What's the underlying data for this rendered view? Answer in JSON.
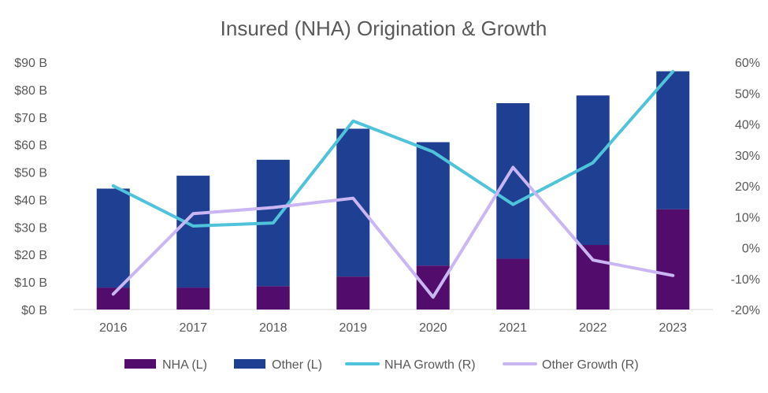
{
  "chart_data": {
    "type": "bar",
    "stacked": true,
    "title": "Insured (NHA) Origination & Growth",
    "categories": [
      "2016",
      "2017",
      "2018",
      "2019",
      "2020",
      "2021",
      "2022",
      "2023"
    ],
    "series": [
      {
        "name": "NHA (L)",
        "type": "bar",
        "axis": "left",
        "color": "#520D6C",
        "values": [
          8,
          8,
          8.5,
          12,
          16,
          18.5,
          23.5,
          36.5
        ]
      },
      {
        "name": "Other (L)",
        "type": "bar",
        "axis": "left",
        "color": "#1F3F93",
        "values": [
          36,
          40.7,
          46,
          53.8,
          44.9,
          56.6,
          54.4,
          50.2
        ]
      },
      {
        "name": "NHA Growth (R)",
        "type": "line",
        "axis": "right",
        "color": "#4FC3D9",
        "values": [
          20,
          7,
          8,
          41,
          31,
          14,
          27.5,
          57
        ]
      },
      {
        "name": "Other Growth (R)",
        "type": "line",
        "axis": "right",
        "color": "#C9B6F2",
        "values": [
          -15,
          11,
          13,
          16,
          -16,
          26,
          -4,
          -9
        ]
      }
    ],
    "y_left": {
      "ylim": [
        0,
        90
      ],
      "tick_values": [
        0,
        10,
        20,
        30,
        40,
        50,
        60,
        70,
        80,
        90
      ],
      "tick_labels": [
        "$0 B",
        "$10 B",
        "$20 B",
        "$30 B",
        "$40 B",
        "$50 B",
        "$60 B",
        "$70 B",
        "$80 B",
        "$90 B"
      ]
    },
    "y_right": {
      "ylim": [
        -20,
        60
      ],
      "tick_values": [
        -20,
        -10,
        0,
        10,
        20,
        30,
        40,
        50,
        60
      ],
      "tick_labels": [
        "-20%",
        "-10%",
        "0%",
        "10%",
        "20%",
        "30%",
        "40%",
        "50%",
        "60%"
      ]
    },
    "xlabel": "",
    "ylabel": "",
    "grid": false,
    "legend_position": "bottom",
    "colors": {
      "text": "#595959",
      "axis": "#D9D9D9"
    }
  }
}
